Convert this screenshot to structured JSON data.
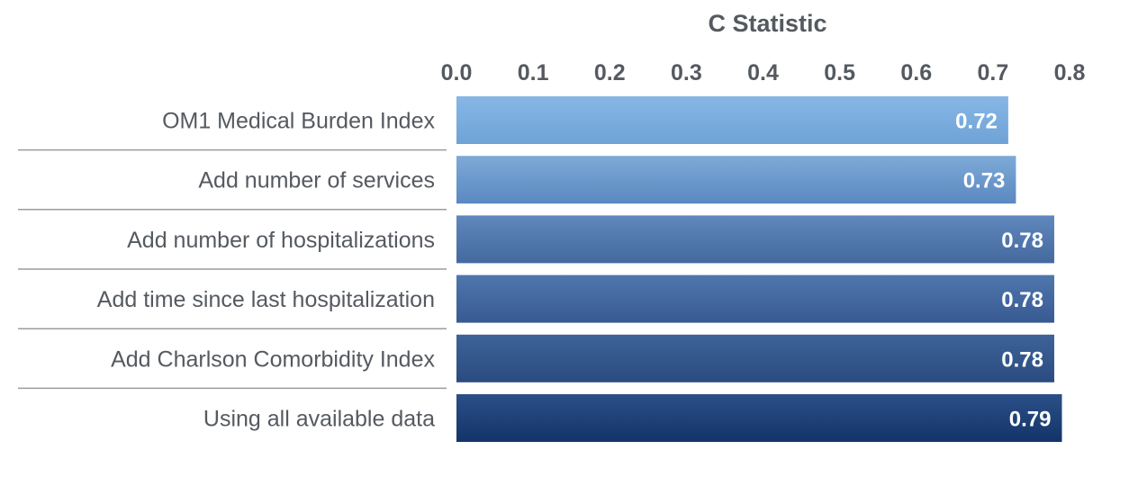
{
  "chart_data": {
    "type": "bar",
    "orientation": "horizontal",
    "title": "",
    "xlabel": "C Statistic",
    "ylabel": "",
    "xlim": [
      0,
      0.8
    ],
    "ticks": [
      "0.0",
      "0.1",
      "0.2",
      "0.3",
      "0.4",
      "0.5",
      "0.6",
      "0.7",
      "0.8"
    ],
    "axis_position": "top",
    "grid": false,
    "categories": [
      "OM1 Medical Burden Index",
      "Add number of services",
      "Add number of hospitalizations",
      "Add time since last hospitalization",
      "Add Charlson Comorbidity Index",
      "Using all available data"
    ],
    "values": [
      0.72,
      0.73,
      0.78,
      0.78,
      0.78,
      0.79
    ],
    "data_labels": [
      "0.72",
      "0.73",
      "0.78",
      "0.78",
      "0.78",
      "0.79"
    ],
    "colors": {
      "bar_gradient": [
        [
          "#86b7e6",
          "#6fa2d6"
        ],
        [
          "#7eaad8",
          "#5a88c0"
        ],
        [
          "#5f88bd",
          "#44699f"
        ],
        [
          "#4f76ad",
          "#385a92"
        ],
        [
          "#3e6399",
          "#2a4b80"
        ],
        [
          "#2b4f88",
          "#133469"
        ]
      ],
      "text": "#555a60",
      "divider": "#9a9ca0",
      "label_text": "#ffffff"
    }
  }
}
